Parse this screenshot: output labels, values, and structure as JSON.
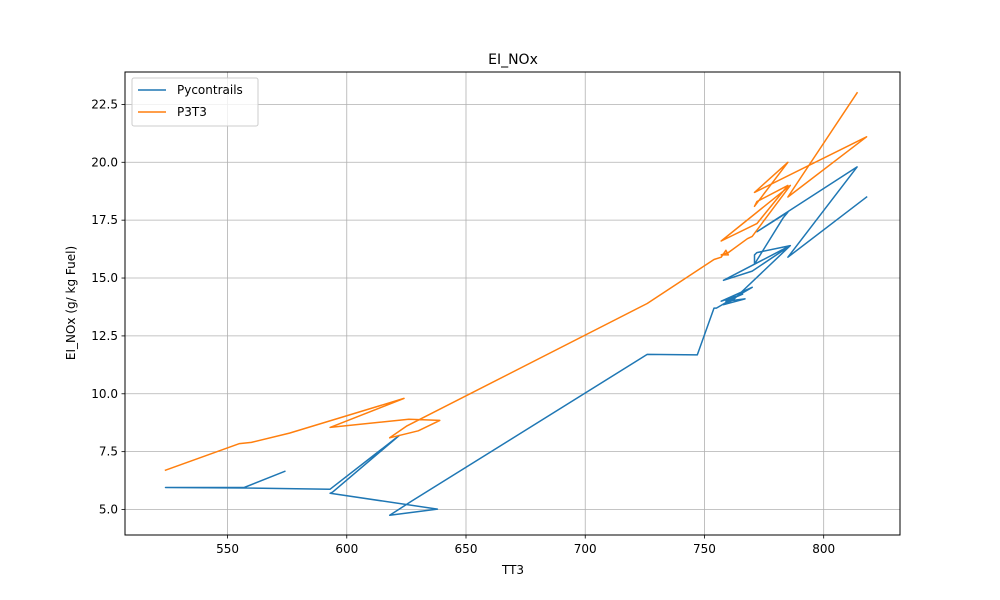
{
  "chart_data": {
    "type": "line",
    "title": "EI_NOx",
    "xlabel": "TT3",
    "ylabel": "EI_NOx (g/ kg Fuel)",
    "xlim": [
      507,
      832
    ],
    "ylim": [
      3.9,
      23.9
    ],
    "xticks": [
      550,
      600,
      650,
      700,
      750,
      800
    ],
    "yticks": [
      5.0,
      7.5,
      10.0,
      12.5,
      15.0,
      17.5,
      20.0,
      22.5
    ],
    "grid": true,
    "legend_position": "top-left",
    "series": [
      {
        "name": "Pycontrails",
        "color": "#1f77b4",
        "points": [
          [
            574,
            6.65
          ],
          [
            557,
            5.95
          ],
          [
            524,
            5.95
          ],
          [
            558,
            5.93
          ],
          [
            593,
            5.88
          ],
          [
            622,
            8.2
          ],
          [
            594,
            5.75
          ],
          [
            593,
            5.7
          ],
          [
            638,
            5.02
          ],
          [
            618,
            4.75
          ],
          [
            627,
            5.35
          ],
          [
            726,
            11.7
          ],
          [
            747,
            11.68
          ],
          [
            754,
            13.7
          ],
          [
            755,
            13.7
          ],
          [
            770,
            14.6
          ],
          [
            757,
            14.0
          ],
          [
            766,
            14.3
          ],
          [
            759,
            14.0
          ],
          [
            767,
            14.1
          ],
          [
            758,
            13.85
          ],
          [
            762,
            14.05
          ],
          [
            786,
            16.4
          ],
          [
            758,
            14.9
          ],
          [
            770,
            15.3
          ],
          [
            786,
            16.4
          ],
          [
            772,
            16.1
          ],
          [
            771,
            16.0
          ],
          [
            771,
            15.6
          ],
          [
            783,
            17.6
          ],
          [
            785,
            17.85
          ],
          [
            772,
            17.0
          ],
          [
            814,
            19.8
          ],
          [
            785,
            15.9
          ],
          [
            818,
            18.5
          ]
        ]
      },
      {
        "name": "P3T3",
        "color": "#ff7f0e",
        "points": [
          [
            524,
            6.7
          ],
          [
            555,
            7.85
          ],
          [
            560,
            7.9
          ],
          [
            576,
            8.3
          ],
          [
            624,
            9.8
          ],
          [
            593,
            8.55
          ],
          [
            626,
            8.9
          ],
          [
            639,
            8.85
          ],
          [
            630,
            8.4
          ],
          [
            618,
            8.1
          ],
          [
            625,
            8.6
          ],
          [
            726,
            13.9
          ],
          [
            754,
            15.8
          ],
          [
            757,
            15.9
          ],
          [
            759,
            16.2
          ],
          [
            760,
            16.0
          ],
          [
            757,
            16.0
          ],
          [
            760,
            16.1
          ],
          [
            768,
            16.7
          ],
          [
            770,
            16.8
          ],
          [
            786,
            19.0
          ],
          [
            757,
            16.6
          ],
          [
            772,
            17.35
          ],
          [
            785,
            19.0
          ],
          [
            772,
            18.3
          ],
          [
            771,
            18.1
          ],
          [
            785,
            20.0
          ],
          [
            771,
            18.7
          ],
          [
            818,
            21.1
          ],
          [
            785,
            18.5
          ],
          [
            814,
            23.0
          ]
        ]
      }
    ]
  }
}
